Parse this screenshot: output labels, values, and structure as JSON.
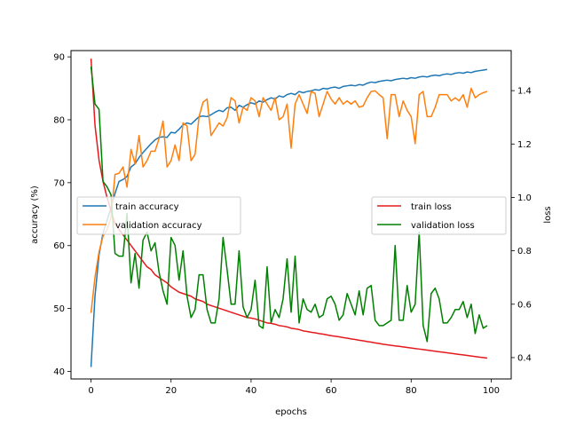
{
  "chart_data": {
    "type": "line",
    "xlabel": "epochs",
    "ylabel_left": "accuracy (%)",
    "ylabel_right": "loss",
    "xlim": [
      -5,
      105
    ],
    "ylim_left": [
      38.8,
      91.0
    ],
    "ylim_right": [
      0.32,
      1.55
    ],
    "x_ticks": [
      0,
      20,
      40,
      60,
      80,
      100
    ],
    "y_ticks_left": [
      40,
      50,
      60,
      70,
      80,
      90
    ],
    "y_ticks_right": [
      0.4,
      0.6,
      0.8,
      1.0,
      1.2,
      1.4
    ],
    "y_ticks_right_labels": [
      "0.4",
      "0.6",
      "0.8",
      "1.0",
      "1.2",
      "1.4"
    ],
    "grid": false,
    "legend_left_placement": "center-left",
    "legend_right_placement": "center-right",
    "series": [
      {
        "name": "train accuracy",
        "axis": "left",
        "color": "#1f77b4",
        "x": [
          0,
          1,
          2,
          3,
          4,
          5,
          6,
          7,
          8,
          9,
          10,
          11,
          12,
          13,
          14,
          15,
          16,
          17,
          18,
          19,
          20,
          21,
          22,
          23,
          24,
          25,
          26,
          27,
          28,
          29,
          30,
          31,
          32,
          33,
          34,
          35,
          36,
          37,
          38,
          39,
          40,
          41,
          42,
          43,
          44,
          45,
          46,
          47,
          48,
          49,
          50,
          51,
          52,
          53,
          54,
          55,
          56,
          57,
          58,
          59,
          60,
          61,
          62,
          63,
          64,
          65,
          66,
          67,
          68,
          69,
          70,
          71,
          72,
          73,
          74,
          75,
          76,
          77,
          78,
          79,
          80,
          81,
          82,
          83,
          84,
          85,
          86,
          87,
          88,
          89,
          90,
          91,
          92,
          93,
          94,
          95,
          96,
          97,
          98,
          99
        ],
        "values": [
          40.7,
          52.0,
          58.5,
          62.0,
          64.0,
          66.0,
          68.3,
          70.2,
          70.5,
          71.0,
          72.5,
          73.0,
          74.0,
          74.8,
          75.5,
          76.2,
          76.8,
          77.2,
          77.3,
          77.2,
          78.0,
          77.9,
          78.5,
          79.2,
          79.5,
          79.3,
          79.9,
          80.5,
          80.6,
          80.5,
          80.8,
          81.2,
          81.5,
          81.3,
          81.9,
          82.0,
          81.5,
          82.3,
          82.0,
          82.4,
          82.7,
          82.5,
          83.0,
          82.8,
          83.2,
          83.5,
          83.3,
          83.8,
          83.6,
          84.0,
          84.2,
          84.0,
          84.5,
          84.3,
          84.5,
          84.6,
          84.8,
          84.7,
          85.0,
          84.9,
          85.1,
          85.2,
          85.0,
          85.3,
          85.4,
          85.5,
          85.4,
          85.6,
          85.5,
          85.8,
          86.0,
          85.9,
          86.1,
          86.2,
          86.3,
          86.2,
          86.4,
          86.5,
          86.6,
          86.5,
          86.7,
          86.6,
          86.8,
          86.9,
          86.8,
          87.0,
          87.1,
          87.0,
          87.2,
          87.3,
          87.2,
          87.4,
          87.5,
          87.4,
          87.6,
          87.5,
          87.7,
          87.8,
          87.9,
          88.0
        ]
      },
      {
        "name": "validation accuracy",
        "axis": "left",
        "color": "#ff7f0e",
        "x": [
          0,
          1,
          2,
          3,
          4,
          5,
          6,
          7,
          8,
          9,
          10,
          11,
          12,
          13,
          14,
          15,
          16,
          17,
          18,
          19,
          20,
          21,
          22,
          23,
          24,
          25,
          26,
          27,
          28,
          29,
          30,
          31,
          32,
          33,
          34,
          35,
          36,
          37,
          38,
          39,
          40,
          41,
          42,
          43,
          44,
          45,
          46,
          47,
          48,
          49,
          50,
          51,
          52,
          53,
          54,
          55,
          56,
          57,
          58,
          59,
          60,
          61,
          62,
          63,
          64,
          65,
          66,
          67,
          68,
          69,
          70,
          71,
          72,
          73,
          74,
          75,
          76,
          77,
          78,
          79,
          80,
          81,
          82,
          83,
          84,
          85,
          86,
          87,
          88,
          89,
          90,
          91,
          92,
          93,
          94,
          95,
          96,
          97,
          98,
          99
        ],
        "values": [
          49.3,
          55.0,
          59.0,
          61.5,
          62.5,
          64.5,
          71.3,
          71.5,
          72.5,
          69.3,
          75.3,
          73.0,
          77.5,
          72.5,
          73.5,
          75.0,
          75.0,
          77.0,
          79.8,
          72.5,
          73.5,
          76.0,
          73.5,
          79.5,
          79.0,
          73.5,
          74.5,
          80.5,
          82.8,
          83.3,
          77.5,
          78.5,
          79.5,
          79.0,
          80.3,
          83.5,
          83.0,
          79.5,
          82.0,
          81.5,
          83.5,
          83.0,
          80.5,
          83.5,
          82.5,
          81.5,
          83.5,
          80.0,
          80.5,
          82.5,
          75.5,
          82.5,
          84.0,
          82.5,
          81.0,
          84.5,
          84.2,
          80.5,
          82.5,
          84.5,
          83.3,
          82.5,
          83.5,
          82.5,
          83.0,
          82.5,
          83.0,
          82.0,
          82.2,
          83.5,
          84.5,
          84.6,
          84.0,
          83.5,
          77.0,
          84.0,
          84.0,
          80.5,
          83.0,
          81.5,
          80.5,
          76.2,
          84.0,
          84.5,
          80.5,
          80.5,
          82.0,
          84.0,
          84.0,
          84.0,
          83.0,
          83.5,
          83.0,
          84.0,
          82.0,
          85.0,
          83.5,
          84.0,
          84.3,
          84.5
        ]
      },
      {
        "name": "train loss",
        "axis": "right",
        "color": "#e41a1c",
        "x": [
          0,
          1,
          2,
          3,
          4,
          5,
          6,
          7,
          8,
          9,
          10,
          11,
          12,
          13,
          14,
          15,
          16,
          17,
          18,
          19,
          20,
          21,
          22,
          23,
          24,
          25,
          26,
          27,
          28,
          29,
          30,
          31,
          32,
          33,
          34,
          35,
          36,
          37,
          38,
          39,
          40,
          41,
          42,
          43,
          44,
          45,
          46,
          47,
          48,
          49,
          50,
          51,
          52,
          53,
          54,
          55,
          56,
          57,
          58,
          59,
          60,
          61,
          62,
          63,
          64,
          65,
          66,
          67,
          68,
          69,
          70,
          71,
          72,
          73,
          74,
          75,
          76,
          77,
          78,
          79,
          80,
          81,
          82,
          83,
          84,
          85,
          86,
          87,
          88,
          89,
          90,
          91,
          92,
          93,
          94,
          95,
          96,
          97,
          98,
          99
        ],
        "values": [
          1.52,
          1.27,
          1.14,
          1.06,
          1.0,
          0.95,
          0.9,
          0.88,
          0.86,
          0.84,
          0.82,
          0.8,
          0.78,
          0.76,
          0.74,
          0.73,
          0.71,
          0.7,
          0.69,
          0.68,
          0.665,
          0.655,
          0.645,
          0.64,
          0.635,
          0.63,
          0.62,
          0.615,
          0.61,
          0.6,
          0.595,
          0.59,
          0.585,
          0.58,
          0.575,
          0.57,
          0.565,
          0.56,
          0.555,
          0.55,
          0.548,
          0.545,
          0.54,
          0.535,
          0.53,
          0.528,
          0.525,
          0.52,
          0.518,
          0.515,
          0.51,
          0.508,
          0.505,
          0.5,
          0.498,
          0.495,
          0.493,
          0.49,
          0.488,
          0.485,
          0.482,
          0.48,
          0.478,
          0.475,
          0.473,
          0.47,
          0.468,
          0.465,
          0.463,
          0.46,
          0.458,
          0.455,
          0.453,
          0.45,
          0.448,
          0.446,
          0.444,
          0.442,
          0.44,
          0.438,
          0.436,
          0.434,
          0.432,
          0.43,
          0.428,
          0.426,
          0.424,
          0.422,
          0.42,
          0.418,
          0.416,
          0.414,
          0.412,
          0.41,
          0.408,
          0.406,
          0.404,
          0.402,
          0.4,
          0.398
        ]
      },
      {
        "name": "validation loss",
        "axis": "right",
        "color": "#008000",
        "x": [
          0,
          1,
          2,
          3,
          4,
          5,
          6,
          7,
          8,
          9,
          10,
          11,
          12,
          13,
          14,
          15,
          16,
          17,
          18,
          19,
          20,
          21,
          22,
          23,
          24,
          25,
          26,
          27,
          28,
          29,
          30,
          31,
          32,
          33,
          34,
          35,
          36,
          37,
          38,
          39,
          40,
          41,
          42,
          43,
          44,
          45,
          46,
          47,
          48,
          49,
          50,
          51,
          52,
          53,
          54,
          55,
          56,
          57,
          58,
          59,
          60,
          61,
          62,
          63,
          64,
          65,
          66,
          67,
          68,
          69,
          70,
          71,
          72,
          73,
          74,
          75,
          76,
          77,
          78,
          79,
          80,
          81,
          82,
          83,
          84,
          85,
          86,
          87,
          88,
          89,
          90,
          91,
          92,
          93,
          94,
          95,
          96,
          97,
          98,
          99
        ],
        "values": [
          1.49,
          1.35,
          1.33,
          1.06,
          1.04,
          1.01,
          0.79,
          0.78,
          0.78,
          0.94,
          0.68,
          0.79,
          0.66,
          0.84,
          0.87,
          0.8,
          0.83,
          0.72,
          0.65,
          0.6,
          0.85,
          0.82,
          0.69,
          0.8,
          0.63,
          0.55,
          0.58,
          0.71,
          0.71,
          0.58,
          0.53,
          0.53,
          0.62,
          0.85,
          0.73,
          0.6,
          0.6,
          0.8,
          0.59,
          0.55,
          0.58,
          0.69,
          0.52,
          0.51,
          0.74,
          0.53,
          0.58,
          0.55,
          0.62,
          0.77,
          0.57,
          0.78,
          0.53,
          0.62,
          0.58,
          0.57,
          0.6,
          0.55,
          0.56,
          0.62,
          0.63,
          0.6,
          0.54,
          0.56,
          0.64,
          0.6,
          0.56,
          0.65,
          0.56,
          0.66,
          0.67,
          0.54,
          0.52,
          0.52,
          0.53,
          0.54,
          0.82,
          0.54,
          0.54,
          0.67,
          0.57,
          0.6,
          0.87,
          0.52,
          0.46,
          0.64,
          0.66,
          0.62,
          0.53,
          0.53,
          0.55,
          0.58,
          0.58,
          0.61,
          0.55,
          0.6,
          0.49,
          0.56,
          0.51,
          0.52
        ]
      }
    ]
  }
}
